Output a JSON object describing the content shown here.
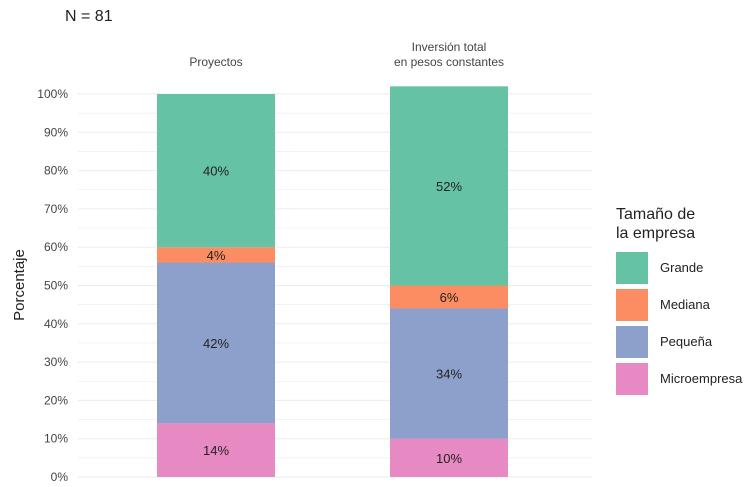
{
  "note": "N = 81",
  "chart_data": {
    "type": "bar",
    "stacked": true,
    "categories": [
      "Proyectos",
      "Inversión total\nen pesos constantes"
    ],
    "ylabel": "Porcentaje",
    "xlabel": "",
    "ylim": [
      0,
      100
    ],
    "yticks": [
      "0%",
      "10%",
      "20%",
      "30%",
      "40%",
      "50%",
      "60%",
      "70%",
      "80%",
      "90%",
      "100%"
    ],
    "grid": true,
    "legend_title": "Tamaño de\nla empresa",
    "legend_position": "right",
    "series": [
      {
        "name": "Microempresa",
        "color": "#E78AC3",
        "values": [
          14,
          10
        ],
        "labels": [
          "14%",
          "10%"
        ]
      },
      {
        "name": "Pequeña",
        "color": "#8DA0CB",
        "values": [
          42,
          34
        ],
        "labels": [
          "42%",
          "34%"
        ]
      },
      {
        "name": "Mediana",
        "color": "#FC8D62",
        "values": [
          4,
          6
        ],
        "labels": [
          "4%",
          "6%"
        ]
      },
      {
        "name": "Grande",
        "color": "#66C2A5",
        "values": [
          40,
          52
        ],
        "labels": [
          "40%",
          "52%"
        ]
      }
    ],
    "legend_order": [
      "Grande",
      "Mediana",
      "Pequeña",
      "Microempresa"
    ]
  }
}
